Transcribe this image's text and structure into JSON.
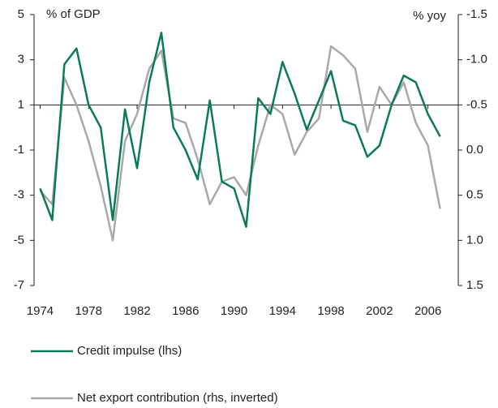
{
  "chart_data": {
    "type": "line",
    "y_label": "% of GDP",
    "y2_label": "% yoy",
    "x": [
      1974,
      1975,
      1976,
      1977,
      1978,
      1979,
      1980,
      1981,
      1982,
      1983,
      1984,
      1985,
      1986,
      1987,
      1988,
      1989,
      1990,
      1991,
      1992,
      1993,
      1994,
      1995,
      1996,
      1997,
      1998,
      1999,
      2000,
      2001,
      2002,
      2003,
      2004,
      2005,
      2006,
      2007
    ],
    "xlim": [
      1973.5,
      2008.5
    ],
    "xticks": [
      1974,
      1978,
      1982,
      1986,
      1990,
      1994,
      1998,
      2002,
      2006
    ],
    "ylim": [
      -7,
      5
    ],
    "yticks": [
      -7,
      -5,
      -3,
      -1,
      1,
      3,
      5
    ],
    "y2lim": [
      -1.5,
      1.5
    ],
    "y2_inverted": true,
    "y2ticks": [
      -1.5,
      {
        "value": -1.0,
        "label": "-1.0"
      },
      -0.5,
      {
        "value": 0.0,
        "label": "0.0"
      },
      0.5,
      {
        "value": 1.0,
        "label": "1.0"
      },
      1.5
    ],
    "reference_line": 1,
    "series": [
      {
        "name": "Credit impulse (lhs)",
        "color": "#0b7a5c",
        "values": [
          -2.7,
          -4.1,
          2.8,
          3.5,
          1.0,
          0.0,
          -4.1,
          0.8,
          -1.8,
          2.0,
          4.2,
          0.0,
          -1.0,
          -2.3,
          1.2,
          -2.4,
          -2.7,
          -4.4,
          1.3,
          0.6,
          2.9,
          1.5,
          -0.1,
          1.2,
          2.5,
          0.3,
          0.1,
          -1.3,
          -0.8,
          1.0,
          2.3,
          2.0,
          0.6,
          -0.4
        ]
      },
      {
        "name": "Net export contribution (rhs, inverted)",
        "color": "#a9a9a9",
        "axis": "y2",
        "values": [
          0.45,
          0.6,
          -0.8,
          -0.5,
          -0.1,
          0.4,
          1.0,
          -0.1,
          -0.4,
          -0.9,
          -1.1,
          -0.35,
          -0.3,
          0.1,
          0.6,
          0.35,
          0.3,
          0.5,
          -0.05,
          -0.5,
          -0.4,
          0.05,
          -0.2,
          -0.35,
          -1.15,
          -1.05,
          -0.9,
          -0.2,
          -0.7,
          -0.5,
          -0.75,
          -0.3,
          -0.05,
          0.65
        ]
      }
    ]
  }
}
